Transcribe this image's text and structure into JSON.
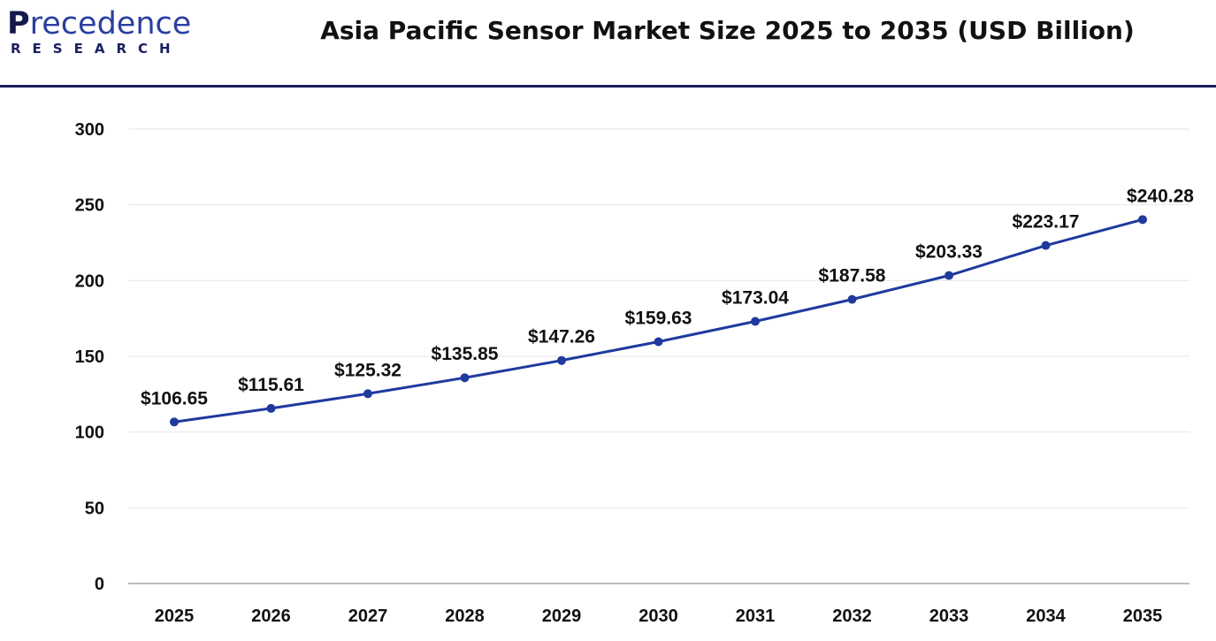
{
  "logo": {
    "text": "Precedence",
    "subtext": "RESEARCH"
  },
  "chart_data": {
    "type": "line",
    "title": "Asia Pacific Sensor Market Size 2025 to 2035 (USD Billion)",
    "xlabel": "",
    "ylabel": "",
    "categories": [
      "2025",
      "2026",
      "2027",
      "2028",
      "2029",
      "2030",
      "2031",
      "2032",
      "2033",
      "2034",
      "2035"
    ],
    "values": [
      106.65,
      115.61,
      125.32,
      135.85,
      147.26,
      159.63,
      173.04,
      187.58,
      203.33,
      223.17,
      240.28
    ],
    "data_labels": [
      "$106.65",
      "$115.61",
      "$125.32",
      "$135.85",
      "$147.26",
      "$159.63",
      "$173.04",
      "$187.58",
      "$203.33",
      "$223.17",
      "$240.28"
    ],
    "ylim": [
      0,
      300
    ],
    "yticks": [
      0,
      50,
      100,
      150,
      200,
      250,
      300
    ],
    "grid": true,
    "legend": "none",
    "colors": {
      "line": "#1f3a9e",
      "grid": "#e6e6e6",
      "axis": "#bdbdbd"
    }
  }
}
